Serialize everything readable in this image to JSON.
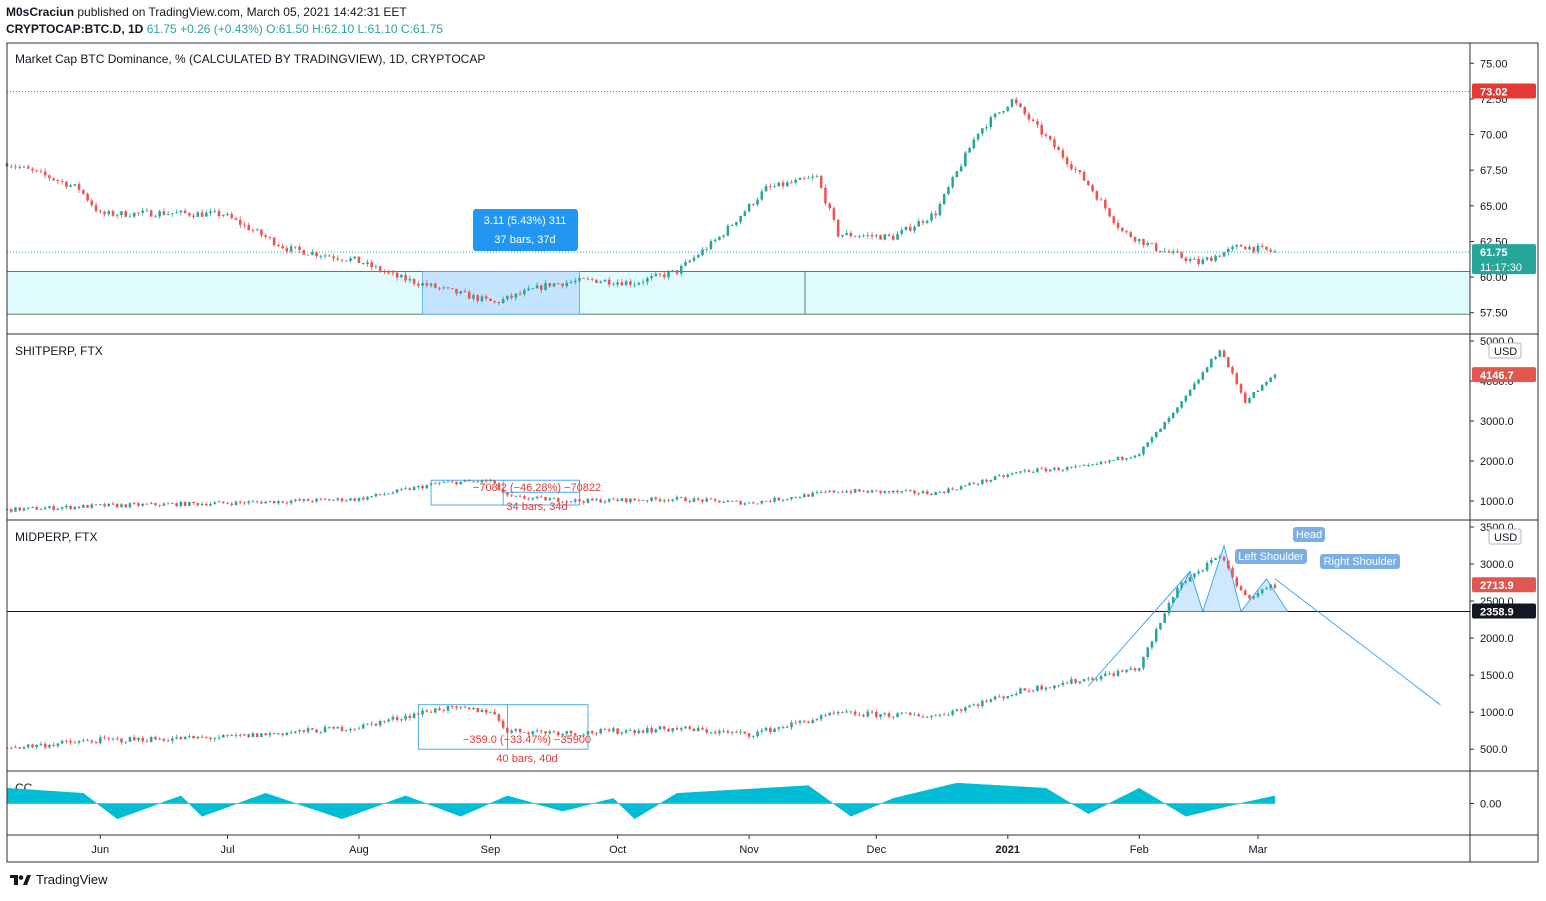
{
  "header": {
    "author": "M0sCraciun",
    "published": "published on TradingView.com, March 05, 2021 14:42:31 EET",
    "symbol": "CRYPTOCAP:BTC.D, 1D",
    "last": "61.75",
    "change": "+0.26 (+0.43%)",
    "ohlc": "O:61.50 H:62.10 L:61.10 C:61.75"
  },
  "footer": {
    "brand": "TradingView"
  },
  "colors": {
    "up": "#26a69a",
    "down": "#ef5350",
    "cc": "#00bcd4",
    "zone": "#e0fbfc",
    "measure": "#2196f3",
    "red_label": "#e53935"
  },
  "chart_data": [
    {
      "type": "candlestick",
      "title": "Market Cap BTC Dominance, % (CALCULATED BY TRADINGVIEW), 1D, CRYPTOCAP",
      "y_ticks": [
        "75.00",
        "72.50",
        "70.00",
        "67.50",
        "65.00",
        "62.50",
        "60.00",
        "57.50"
      ],
      "ylim": [
        56.5,
        76.0
      ],
      "series_close": [
        {
          "x": "2020-05-10",
          "y": 68.0
        },
        {
          "x": "2020-05-20",
          "y": 67.0
        },
        {
          "x": "2020-05-27",
          "y": 66.2
        },
        {
          "x": "2020-06-01",
          "y": 64.4
        },
        {
          "x": "2020-06-15",
          "y": 64.5
        },
        {
          "x": "2020-06-30",
          "y": 64.4
        },
        {
          "x": "2020-07-15",
          "y": 62.0
        },
        {
          "x": "2020-07-31",
          "y": 61.2
        },
        {
          "x": "2020-08-10",
          "y": 60.0
        },
        {
          "x": "2020-08-20",
          "y": 59.2
        },
        {
          "x": "2020-09-02",
          "y": 58.2
        },
        {
          "x": "2020-09-15",
          "y": 59.5
        },
        {
          "x": "2020-09-25",
          "y": 59.8
        },
        {
          "x": "2020-10-05",
          "y": 59.6
        },
        {
          "x": "2020-10-15",
          "y": 60.4
        },
        {
          "x": "2020-10-25",
          "y": 62.8
        },
        {
          "x": "2020-11-05",
          "y": 66.2
        },
        {
          "x": "2020-11-17",
          "y": 67.0
        },
        {
          "x": "2020-11-22",
          "y": 63.0
        },
        {
          "x": "2020-12-05",
          "y": 62.8
        },
        {
          "x": "2020-12-15",
          "y": 64.5
        },
        {
          "x": "2020-12-25",
          "y": 70.2
        },
        {
          "x": "2021-01-02",
          "y": 72.4
        },
        {
          "x": "2021-01-10",
          "y": 69.8
        },
        {
          "x": "2021-01-20",
          "y": 66.5
        },
        {
          "x": "2021-01-28",
          "y": 63.2
        },
        {
          "x": "2021-02-05",
          "y": 62.0
        },
        {
          "x": "2021-02-15",
          "y": 61.0
        },
        {
          "x": "2021-02-25",
          "y": 62.2
        },
        {
          "x": "2021-03-05",
          "y": 61.75
        }
      ],
      "price_labels": {
        "high_line": "73.02",
        "last": "61.75",
        "countdown": "11:17:30"
      },
      "annotations": {
        "measure_line1": "3.11 (5.43%) 311",
        "measure_line2": "37 bars, 37d"
      }
    },
    {
      "type": "candlestick",
      "title": "SHITPERP, FTX",
      "currency": "USD",
      "y_ticks": [
        "5000.0",
        "4000.0",
        "3000.0",
        "2000.0",
        "1000.0"
      ],
      "ylim": [
        700,
        5000
      ],
      "series_close": [
        {
          "x": "2020-05-10",
          "y": 780
        },
        {
          "x": "2020-06-01",
          "y": 880
        },
        {
          "x": "2020-07-01",
          "y": 950
        },
        {
          "x": "2020-08-01",
          "y": 1050
        },
        {
          "x": "2020-08-20",
          "y": 1450
        },
        {
          "x": "2020-09-01",
          "y": 1500
        },
        {
          "x": "2020-09-05",
          "y": 1100
        },
        {
          "x": "2020-09-22",
          "y": 1000
        },
        {
          "x": "2020-10-15",
          "y": 1050
        },
        {
          "x": "2020-11-01",
          "y": 950
        },
        {
          "x": "2020-11-22",
          "y": 1250
        },
        {
          "x": "2020-12-15",
          "y": 1200
        },
        {
          "x": "2021-01-05",
          "y": 1750
        },
        {
          "x": "2021-01-20",
          "y": 1850
        },
        {
          "x": "2021-02-01",
          "y": 2200
        },
        {
          "x": "2021-02-10",
          "y": 3300
        },
        {
          "x": "2021-02-20",
          "y": 4800
        },
        {
          "x": "2021-02-26",
          "y": 3500
        },
        {
          "x": "2021-03-05",
          "y": 4146.7
        }
      ],
      "price_labels": {
        "last": "4146.7"
      },
      "annotations": {
        "measure_line1": "−708.2 (−46.28%) −70822",
        "measure_line2": "34 bars, 34d"
      }
    },
    {
      "type": "candlestick",
      "title": "MIDPERP, FTX",
      "currency": "USD",
      "y_ticks": [
        "3500.0",
        "3000.0",
        "2500.0",
        "2000.0",
        "1500.0",
        "1000.0",
        "500.0"
      ],
      "ylim": [
        300,
        3500
      ],
      "series_close": [
        {
          "x": "2020-05-10",
          "y": 520
        },
        {
          "x": "2020-06-01",
          "y": 620
        },
        {
          "x": "2020-07-01",
          "y": 660
        },
        {
          "x": "2020-08-01",
          "y": 800
        },
        {
          "x": "2020-08-20",
          "y": 1050
        },
        {
          "x": "2020-09-01",
          "y": 1020
        },
        {
          "x": "2020-09-05",
          "y": 750
        },
        {
          "x": "2020-09-22",
          "y": 720
        },
        {
          "x": "2020-10-15",
          "y": 780
        },
        {
          "x": "2020-11-01",
          "y": 700
        },
        {
          "x": "2020-11-22",
          "y": 980
        },
        {
          "x": "2020-12-15",
          "y": 950
        },
        {
          "x": "2021-01-05",
          "y": 1300
        },
        {
          "x": "2021-01-20",
          "y": 1450
        },
        {
          "x": "2021-02-01",
          "y": 1600
        },
        {
          "x": "2021-02-10",
          "y": 2700
        },
        {
          "x": "2021-02-20",
          "y": 3100
        },
        {
          "x": "2021-02-26",
          "y": 2550
        },
        {
          "x": "2021-03-05",
          "y": 2713.9
        }
      ],
      "price_labels": {
        "last": "2713.9",
        "neckline": "2358.9"
      },
      "annotations": {
        "left_shoulder": "Left Shoulder",
        "head": "Head",
        "right_shoulder": "Right Shoulder",
        "measure_line1": "−359.0 (−33.47%) −35900",
        "measure_line2": "40 bars, 40d"
      }
    },
    {
      "type": "area",
      "title": "CC",
      "y_ticks": [
        "0.00"
      ],
      "ylim": [
        -1,
        1
      ],
      "series": [
        {
          "x": "2020-05-10",
          "y": 0.6
        },
        {
          "x": "2020-05-28",
          "y": 0.4
        },
        {
          "x": "2020-06-05",
          "y": -0.6
        },
        {
          "x": "2020-06-20",
          "y": 0.3
        },
        {
          "x": "2020-06-25",
          "y": -0.5
        },
        {
          "x": "2020-07-10",
          "y": 0.4
        },
        {
          "x": "2020-07-28",
          "y": -0.6
        },
        {
          "x": "2020-08-12",
          "y": 0.3
        },
        {
          "x": "2020-08-25",
          "y": -0.5
        },
        {
          "x": "2020-09-05",
          "y": 0.3
        },
        {
          "x": "2020-09-18",
          "y": -0.3
        },
        {
          "x": "2020-09-30",
          "y": 0.2
        },
        {
          "x": "2020-10-05",
          "y": -0.6
        },
        {
          "x": "2020-10-15",
          "y": 0.4
        },
        {
          "x": "2020-11-15",
          "y": 0.7
        },
        {
          "x": "2020-11-25",
          "y": -0.5
        },
        {
          "x": "2020-12-05",
          "y": 0.2
        },
        {
          "x": "2020-12-20",
          "y": 0.8
        },
        {
          "x": "2021-01-10",
          "y": 0.6
        },
        {
          "x": "2021-01-20",
          "y": -0.4
        },
        {
          "x": "2021-02-01",
          "y": 0.6
        },
        {
          "x": "2021-02-12",
          "y": -0.5
        },
        {
          "x": "2021-02-22",
          "y": -0.1
        },
        {
          "x": "2021-03-05",
          "y": 0.3
        }
      ]
    }
  ],
  "x_ticks": [
    {
      "label": "Jun",
      "date": "2020-06-01"
    },
    {
      "label": "Jul",
      "date": "2020-07-01"
    },
    {
      "label": "Aug",
      "date": "2020-08-01"
    },
    {
      "label": "Sep",
      "date": "2020-09-01"
    },
    {
      "label": "Oct",
      "date": "2020-10-01"
    },
    {
      "label": "Nov",
      "date": "2020-11-01"
    },
    {
      "label": "Dec",
      "date": "2020-12-01"
    },
    {
      "label": "2021",
      "date": "2021-01-01"
    },
    {
      "label": "Feb",
      "date": "2021-02-01"
    },
    {
      "label": "Mar",
      "date": "2021-03-01"
    }
  ],
  "x_range": [
    "2020-05-10",
    "2021-04-20"
  ]
}
